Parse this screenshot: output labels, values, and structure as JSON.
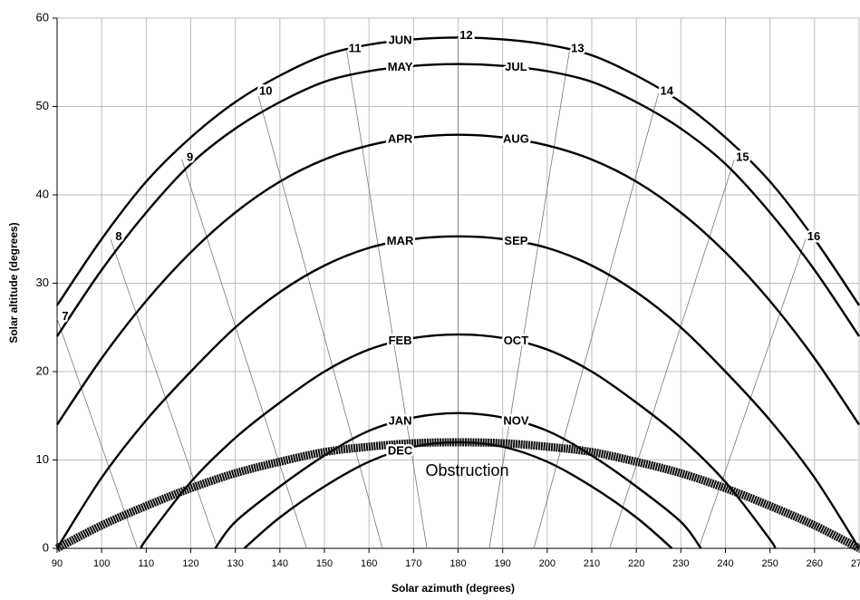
{
  "chart_data": {
    "type": "line",
    "xlabel": "Solar azimuth (degrees)",
    "ylabel": "Solar altitude (degrees)",
    "xlim": [
      90,
      270
    ],
    "ylim": [
      0,
      60
    ],
    "xticks": [
      90,
      100,
      110,
      120,
      130,
      140,
      150,
      160,
      170,
      180,
      190,
      200,
      210,
      220,
      230,
      240,
      250,
      260,
      270
    ],
    "yticks": [
      0,
      10,
      20,
      30,
      40,
      50,
      60
    ],
    "grid": true,
    "month_curves": [
      {
        "labels": [
          "JUN"
        ],
        "x": [
          90,
          100,
          110,
          120,
          130,
          140,
          150,
          160,
          170,
          180,
          190,
          200,
          210,
          220,
          230,
          240,
          250,
          260,
          270
        ],
        "values": [
          27.5,
          35,
          41.5,
          46.5,
          50.5,
          53.5,
          55.8,
          57,
          57.6,
          57.8,
          57.6,
          57,
          55.8,
          53.5,
          50.5,
          46.5,
          41.5,
          35,
          27.5
        ]
      },
      {
        "labels": [
          "MAY",
          "JUL"
        ],
        "x": [
          90,
          100,
          110,
          120,
          130,
          140,
          150,
          160,
          170,
          180,
          190,
          200,
          210,
          220,
          230,
          240,
          250,
          260,
          270
        ],
        "values": [
          24,
          31.5,
          38,
          43.5,
          47.5,
          50.5,
          52.8,
          54,
          54.6,
          54.8,
          54.6,
          54,
          52.8,
          50.5,
          47.5,
          43.5,
          38,
          31.5,
          24
        ]
      },
      {
        "labels": [
          "APR",
          "AUG"
        ],
        "x": [
          90,
          100,
          110,
          120,
          130,
          140,
          150,
          160,
          170,
          180,
          190,
          200,
          210,
          220,
          230,
          240,
          250,
          260,
          270
        ],
        "values": [
          14,
          21.5,
          28,
          33.5,
          38,
          41.5,
          44,
          45.6,
          46.5,
          46.8,
          46.5,
          45.6,
          44,
          41.5,
          38,
          33.5,
          28,
          21.5,
          14
        ]
      },
      {
        "labels": [
          "MAR",
          "SEP"
        ],
        "x": [
          90,
          100,
          110,
          120,
          130,
          140,
          150,
          160,
          170,
          180,
          190,
          200,
          210,
          220,
          230,
          240,
          250,
          260,
          270
        ],
        "values": [
          0,
          8,
          14.5,
          20,
          25,
          29,
          32,
          34,
          35,
          35.3,
          35,
          34,
          32,
          29,
          25,
          20,
          14.5,
          8,
          0
        ]
      },
      {
        "labels": [
          "FEB",
          "OCT"
        ],
        "x": [
          109,
          110,
          120,
          130,
          140,
          150,
          160,
          170,
          180,
          190,
          200,
          210,
          220,
          230,
          240,
          250,
          251
        ],
        "values": [
          0,
          1,
          7.5,
          12.5,
          16.5,
          20,
          22.5,
          23.8,
          24.2,
          23.8,
          22.5,
          20,
          16.5,
          12.5,
          7.5,
          1,
          0
        ]
      },
      {
        "labels": [
          "JAN",
          "NOV"
        ],
        "x": [
          125.5,
          130,
          140,
          150,
          160,
          170,
          180,
          190,
          200,
          210,
          220,
          230,
          234.5
        ],
        "values": [
          0,
          3,
          7,
          10.5,
          13.3,
          14.8,
          15.3,
          14.8,
          13.3,
          10.5,
          7,
          3,
          0
        ]
      },
      {
        "labels": [
          "DEC"
        ],
        "x": [
          132,
          140,
          150,
          160,
          170,
          180,
          190,
          200,
          210,
          220,
          228
        ],
        "values": [
          0,
          3.5,
          7,
          9.8,
          11.5,
          12,
          11.5,
          9.8,
          7,
          3.5,
          0
        ]
      }
    ],
    "hour_lines": [
      {
        "label": "7",
        "x": [
          90,
          108
        ],
        "values": [
          26,
          0
        ]
      },
      {
        "label": "8",
        "x": [
          102,
          126
        ],
        "values": [
          35,
          0
        ]
      },
      {
        "label": "9",
        "x": [
          118,
          146
        ],
        "values": [
          44,
          0
        ]
      },
      {
        "label": "10",
        "x": [
          135,
          163
        ],
        "values": [
          51.5,
          0
        ]
      },
      {
        "label": "11",
        "x": [
          155,
          173
        ],
        "values": [
          56.3,
          0
        ]
      },
      {
        "label": "12",
        "x": [
          180,
          180
        ],
        "values": [
          57.8,
          0
        ]
      },
      {
        "label": "13",
        "x": [
          205,
          187
        ],
        "values": [
          56.3,
          0
        ]
      },
      {
        "label": "14",
        "x": [
          225,
          197
        ],
        "values": [
          51.5,
          0
        ]
      },
      {
        "label": "15",
        "x": [
          242,
          214
        ],
        "values": [
          44,
          0
        ]
      },
      {
        "label": "16",
        "x": [
          258,
          234
        ],
        "values": [
          35,
          0
        ]
      }
    ],
    "obstruction": {
      "label": "Obstruction",
      "x": [
        90,
        100,
        110,
        120,
        130,
        140,
        150,
        160,
        170,
        180,
        190,
        200,
        210,
        220,
        230,
        240,
        250,
        260,
        270
      ],
      "values": [
        0,
        2.6,
        4.8,
        6.8,
        8.5,
        9.8,
        10.9,
        11.5,
        11.9,
        12,
        11.9,
        11.5,
        10.9,
        9.8,
        8.5,
        6.8,
        4.8,
        2.6,
        0
      ]
    }
  }
}
